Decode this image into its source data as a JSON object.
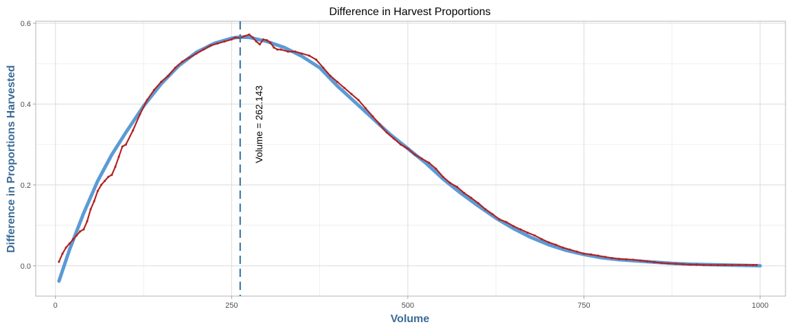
{
  "chart_data": {
    "type": "line",
    "title": "Difference in Harvest Proportions",
    "xlabel": "Volume",
    "ylabel": "Difference in Proportions Harvested",
    "xlim": [
      -28,
      1036
    ],
    "ylim": [
      -0.075,
      0.605
    ],
    "x_ticks": [
      0,
      250,
      500,
      750,
      1000
    ],
    "x_tick_labels": [
      "0",
      "250",
      "500",
      "750",
      "1000"
    ],
    "y_ticks": [
      0.0,
      0.2,
      0.4,
      0.6
    ],
    "y_tick_labels": [
      "0.0",
      "0.2",
      "0.4",
      "0.6"
    ],
    "x_minor_ticks": [
      125,
      375,
      625,
      875
    ],
    "y_minor_ticks": [
      0.1,
      0.3,
      0.5
    ],
    "grid": true,
    "colors": {
      "smooth": "#5b9bd5",
      "points": "#b22222",
      "vline": "#3a7aa8",
      "axis_title": "#3b6b96",
      "grid": "#dedede",
      "panel_border": "#b3b3b3"
    },
    "series": [
      {
        "kind": "smooth",
        "x": [
          5,
          20,
          40,
          60,
          80,
          100,
          125,
          150,
          175,
          200,
          225,
          250,
          262,
          275,
          300,
          325,
          350,
          375,
          400,
          425,
          450,
          475,
          500,
          525,
          550,
          575,
          600,
          625,
          650,
          675,
          700,
          725,
          750,
          775,
          800,
          825,
          850,
          875,
          900,
          925,
          950,
          975,
          1000
        ],
        "y": [
          -0.038,
          0.04,
          0.13,
          0.21,
          0.275,
          0.33,
          0.395,
          0.45,
          0.495,
          0.528,
          0.55,
          0.563,
          0.566,
          0.565,
          0.555,
          0.54,
          0.518,
          0.49,
          0.445,
          0.405,
          0.365,
          0.325,
          0.29,
          0.255,
          0.215,
          0.18,
          0.148,
          0.118,
          0.092,
          0.07,
          0.052,
          0.038,
          0.028,
          0.02,
          0.015,
          0.012,
          0.009,
          0.006,
          0.004,
          0.003,
          0.002,
          0.001,
          0.0
        ]
      },
      {
        "kind": "points",
        "x": [
          5,
          10,
          15,
          20,
          25,
          30,
          35,
          40,
          45,
          50,
          55,
          60,
          65,
          70,
          75,
          80,
          85,
          90,
          95,
          100,
          110,
          120,
          130,
          140,
          150,
          160,
          170,
          180,
          190,
          200,
          210,
          220,
          230,
          240,
          250,
          255,
          262,
          268,
          275,
          280,
          285,
          290,
          295,
          300,
          305,
          310,
          315,
          320,
          330,
          340,
          350,
          360,
          370,
          380,
          390,
          400,
          410,
          420,
          430,
          440,
          450,
          460,
          470,
          480,
          490,
          500,
          510,
          520,
          530,
          540,
          550,
          560,
          570,
          580,
          590,
          600,
          610,
          620,
          630,
          640,
          650,
          660,
          670,
          680,
          690,
          700,
          710,
          720,
          730,
          740,
          750,
          760,
          770,
          780,
          790,
          800,
          810,
          820,
          830,
          840,
          850,
          860,
          870,
          880,
          890,
          900,
          910,
          920,
          930,
          940,
          950,
          960,
          970,
          980,
          990,
          995
        ],
        "y": [
          0.01,
          0.03,
          0.045,
          0.055,
          0.065,
          0.075,
          0.085,
          0.09,
          0.11,
          0.14,
          0.16,
          0.185,
          0.2,
          0.21,
          0.22,
          0.225,
          0.245,
          0.27,
          0.295,
          0.3,
          0.335,
          0.375,
          0.41,
          0.435,
          0.455,
          0.47,
          0.49,
          0.505,
          0.515,
          0.525,
          0.535,
          0.545,
          0.55,
          0.555,
          0.56,
          0.565,
          0.563,
          0.568,
          0.572,
          0.565,
          0.555,
          0.548,
          0.56,
          0.558,
          0.552,
          0.54,
          0.535,
          0.535,
          0.53,
          0.53,
          0.525,
          0.52,
          0.51,
          0.49,
          0.47,
          0.455,
          0.44,
          0.425,
          0.41,
          0.39,
          0.37,
          0.35,
          0.33,
          0.315,
          0.3,
          0.29,
          0.275,
          0.265,
          0.255,
          0.24,
          0.22,
          0.205,
          0.195,
          0.18,
          0.168,
          0.155,
          0.14,
          0.128,
          0.115,
          0.108,
          0.098,
          0.09,
          0.082,
          0.075,
          0.066,
          0.058,
          0.052,
          0.045,
          0.04,
          0.035,
          0.03,
          0.028,
          0.025,
          0.022,
          0.019,
          0.017,
          0.016,
          0.015,
          0.013,
          0.011,
          0.009,
          0.007,
          0.006,
          0.005,
          0.004,
          0.003,
          0.003,
          0.002,
          0.002,
          0.002,
          0.002,
          0.002,
          0.002,
          0.002,
          0.002,
          0.002
        ]
      }
    ],
    "vline": {
      "x": 262.143
    },
    "annotation": {
      "text": "Volume =  262.143",
      "x": 290,
      "y": 0.35
    }
  }
}
